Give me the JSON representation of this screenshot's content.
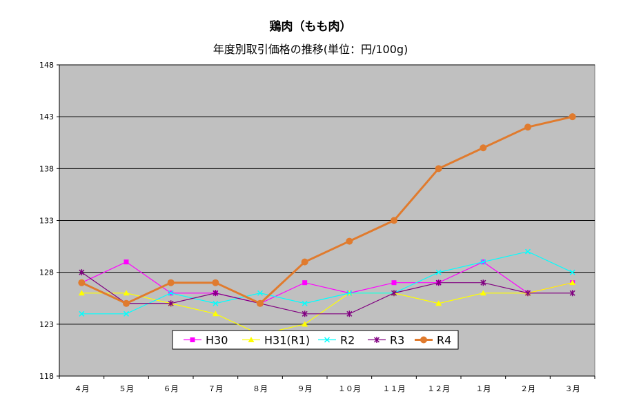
{
  "chart_data": {
    "type": "line",
    "title": "鶏肉（もも肉）",
    "subtitle": "年度別取引価格の推移(単位：円/100g)",
    "categories": [
      "４月",
      "５月",
      "６月",
      "７月",
      "８月",
      "９月",
      "１０月",
      "１１月",
      "１２月",
      "１月",
      "２月",
      "３月"
    ],
    "ylim": [
      118,
      148
    ],
    "yticks": [
      118,
      123,
      128,
      133,
      138,
      143,
      148
    ],
    "grid": true,
    "legend": "bottom-left inside plot",
    "plot_background": "#c0c0c0",
    "series": [
      {
        "name": "H30",
        "color": "#ff00ff",
        "marker": "square",
        "values": [
          127,
          129,
          126,
          126,
          125,
          127,
          126,
          127,
          127,
          129,
          126,
          127
        ]
      },
      {
        "name": "H31(R1)",
        "color": "#ffff00",
        "marker": "triangle",
        "values": [
          126,
          126,
          125,
          124,
          122,
          123,
          126,
          126,
          125,
          126,
          126,
          127
        ]
      },
      {
        "name": "R2",
        "color": "#00ffff",
        "marker": "x",
        "values": [
          124,
          124,
          126,
          125,
          126,
          125,
          126,
          126,
          128,
          129,
          130,
          128
        ]
      },
      {
        "name": "R3",
        "color": "#800080",
        "marker": "star",
        "values": [
          128,
          125,
          125,
          126,
          125,
          124,
          124,
          126,
          127,
          127,
          126,
          126
        ]
      },
      {
        "name": "R4",
        "color": "#e07b2e",
        "marker": "circle",
        "values": [
          127,
          125,
          127,
          127,
          125,
          129,
          131,
          133,
          138,
          140,
          142,
          143
        ]
      }
    ]
  }
}
